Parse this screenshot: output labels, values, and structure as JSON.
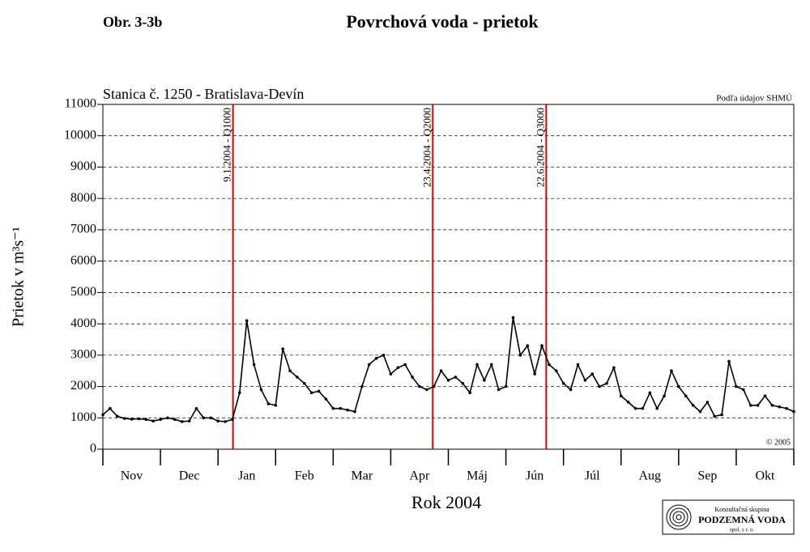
{
  "chart_data": {
    "type": "line",
    "figure_label": "Obr. 3-3b",
    "title": "Povrchová voda - prietok",
    "subtitle": "Stanica č. 1250 - Bratislava-Devín",
    "source": "Podľa údajov SHMÚ",
    "copyright": "© 2005",
    "y_label": "Prietok v m³s⁻¹",
    "x_label": "Rok 2004",
    "categories": [
      "Nov",
      "Dec",
      "Jan",
      "Feb",
      "Mar",
      "Apr",
      "Máj",
      "Jún",
      "Júl",
      "Aug",
      "Sep",
      "Okt"
    ],
    "xlim": [
      0,
      12
    ],
    "xticks": [
      0,
      1,
      2,
      3,
      4,
      5,
      6,
      7,
      8,
      9,
      10,
      11,
      12
    ],
    "ylim": [
      0,
      11000
    ],
    "yticks": [
      0,
      1000,
      2000,
      3000,
      4000,
      5000,
      6000,
      7000,
      8000,
      9000,
      10000,
      11000
    ],
    "grid": true,
    "series": [
      {
        "color": "#000000",
        "x": [
          0,
          0.125,
          0.25,
          0.375,
          0.5,
          0.625,
          0.75,
          0.875,
          1,
          1.125,
          1.25,
          1.375,
          1.5,
          1.625,
          1.75,
          1.875,
          2,
          2.125,
          2.25,
          2.375,
          2.5,
          2.625,
          2.75,
          2.875,
          3,
          3.125,
          3.25,
          3.375,
          3.5,
          3.625,
          3.75,
          3.875,
          4,
          4.125,
          4.25,
          4.375,
          4.5,
          4.625,
          4.75,
          4.875,
          5,
          5.125,
          5.25,
          5.375,
          5.5,
          5.625,
          5.75,
          5.875,
          6,
          6.125,
          6.25,
          6.375,
          6.5,
          6.625,
          6.75,
          6.875,
          7,
          7.125,
          7.25,
          7.375,
          7.5,
          7.625,
          7.75,
          7.875,
          8,
          8.125,
          8.25,
          8.375,
          8.5,
          8.625,
          8.75,
          8.875,
          9,
          9.125,
          9.25,
          9.375,
          9.5,
          9.625,
          9.75,
          9.875,
          10,
          10.125,
          10.25,
          10.375,
          10.5,
          10.625,
          10.75,
          10.875,
          11,
          11.125,
          11.25,
          11.375,
          11.5,
          11.625,
          11.75,
          11.875,
          12
        ],
        "values": [
          1100,
          1300,
          1050,
          980,
          960,
          970,
          950,
          900,
          950,
          1000,
          950,
          880,
          900,
          1300,
          1000,
          1000,
          900,
          880,
          950,
          1800,
          4100,
          2700,
          1900,
          1450,
          1400,
          3200,
          2500,
          2300,
          2100,
          1800,
          1850,
          1600,
          1300,
          1300,
          1250,
          1200,
          2000,
          2700,
          2900,
          3000,
          2400,
          2600,
          2700,
          2300,
          2000,
          1900,
          2000,
          2500,
          2200,
          2300,
          2100,
          1800,
          2700,
          2200,
          2700,
          1900,
          2000,
          4200,
          3000,
          3300,
          2400,
          3300,
          2700,
          2500,
          2100,
          1900,
          2700,
          2200,
          2400,
          2000,
          2100,
          2600,
          1700,
          1500,
          1300,
          1300,
          1800,
          1300,
          1700,
          2500,
          2000,
          1700,
          1400,
          1200,
          1500,
          1050,
          1100,
          2800,
          2000,
          1900,
          1400,
          1400,
          1700,
          1400,
          1350,
          1300,
          1200
        ]
      }
    ],
    "events": [
      {
        "x": 2.26,
        "label": "9.1.2004 - Q1000",
        "color": "#e00000"
      },
      {
        "x": 5.73,
        "label": "23.4.2004 - Q2000",
        "color": "#e00000"
      },
      {
        "x": 7.7,
        "label": "22.6.2004 - Q3000",
        "color": "#e00000"
      }
    ]
  },
  "logo": {
    "line1": "Konzultačná skupina",
    "line2": "PODZEMNÁ VODA",
    "line3": "spol. s r. o."
  }
}
